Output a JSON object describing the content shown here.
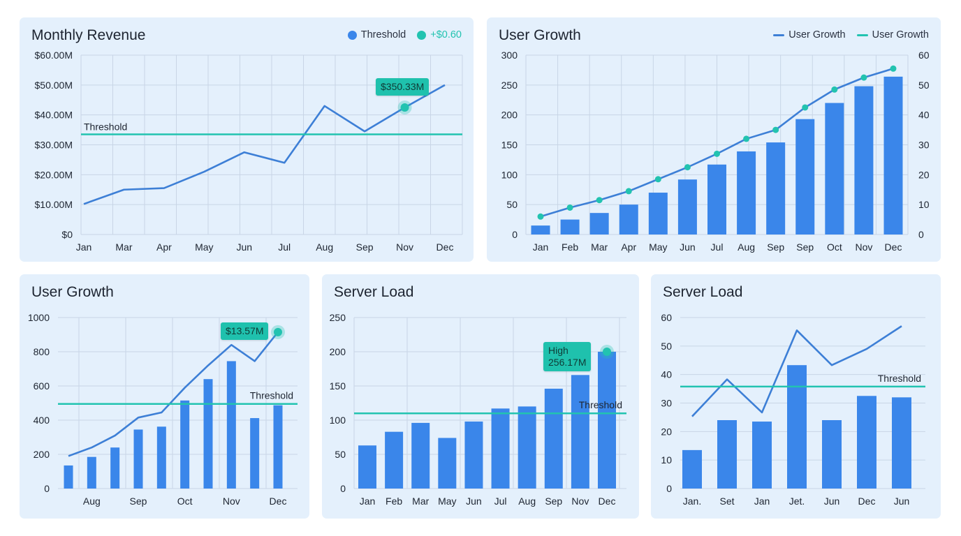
{
  "colors": {
    "panel": "#e4f0fc",
    "bar": "#3a86ea",
    "line": "#3d7fd6",
    "accent": "#22c3b0",
    "grid": "#c8d5e6",
    "text": "#1d2430"
  },
  "chart_data": [
    {
      "type": "line",
      "title": "Monthly Revenue",
      "legend": [
        {
          "label": "Threshold",
          "color": "#3a86ea",
          "marker": "dot"
        },
        {
          "label": "+$0.60",
          "color": "#22c3b0",
          "marker": "dot"
        }
      ],
      "legend_position": "top-right",
      "categories": [
        "Jan",
        "Mar",
        "Apr",
        "May",
        "Jun",
        "Jul",
        "Aug",
        "Sep",
        "Nov",
        "Dec"
      ],
      "series": [
        {
          "type": "line",
          "values": [
            10.2,
            15,
            15.5,
            21,
            27.5,
            24,
            43,
            34.5,
            42.5,
            50
          ]
        }
      ],
      "ylim": [
        0,
        60
      ],
      "yticks": [
        0,
        10,
        20,
        30,
        40,
        50,
        60
      ],
      "ytick_labels": [
        "$0",
        "$10.00M",
        "$20.00M",
        "$30.00M",
        "$40.00M",
        "$50.00M",
        "$60.00M"
      ],
      "threshold": {
        "value": 33.5,
        "label": "Threshold"
      },
      "annotation": {
        "category": "Nov",
        "value": 42.5,
        "lines": [
          "$350.33M"
        ]
      },
      "grid": true
    },
    {
      "type": "bar",
      "title": "User Growth",
      "legend": [
        {
          "label": "User Growth",
          "color": "#3d7fd6",
          "marker": "line"
        },
        {
          "label": "User Growth",
          "color": "#22c3b0",
          "marker": "line"
        }
      ],
      "legend_position": "top-right",
      "categories": [
        "Jan",
        "Feb",
        "Mar",
        "Apr",
        "May",
        "Jun",
        "Jul",
        "Aug",
        "Sep",
        "Sep",
        "Oct",
        "Nov",
        "Dec"
      ],
      "series": [
        {
          "type": "bar",
          "axis": "left",
          "values": [
            15,
            25,
            36,
            50,
            70,
            92,
            117,
            139,
            154,
            193,
            220,
            248,
            264
          ]
        },
        {
          "type": "line",
          "axis": "right",
          "markers": true,
          "values": [
            6,
            9,
            11.5,
            14.5,
            18.5,
            22.5,
            27,
            32,
            35,
            42.5,
            48.5,
            52.5,
            55.5
          ]
        }
      ],
      "ylim": [
        0,
        300
      ],
      "yticks": [
        0,
        50,
        100,
        150,
        200,
        250,
        300
      ],
      "ytick_labels": [
        "0",
        "50",
        "100",
        "150",
        "200",
        "250",
        "300"
      ],
      "y2lim": [
        0,
        60
      ],
      "y2ticks": [
        0,
        10,
        20,
        30,
        40,
        50,
        60
      ],
      "y2tick_labels": [
        "0",
        "10",
        "20",
        "30",
        "40",
        "50",
        "60"
      ],
      "grid": true
    },
    {
      "type": "bar",
      "title": "User Growth",
      "categories": [
        "",
        "Aug",
        "",
        "Sep",
        "",
        "Oct",
        "",
        "Nov",
        "",
        "Dec"
      ],
      "series": [
        {
          "type": "bar",
          "values": [
            135,
            185,
            240,
            345,
            362,
            515,
            640,
            745,
            412,
            487
          ]
        },
        {
          "type": "line",
          "values": [
            190,
            240,
            310,
            415,
            445,
            590,
            720,
            840,
            745,
            915
          ]
        }
      ],
      "ylim": [
        0,
        1000
      ],
      "yticks": [
        0,
        200,
        400,
        600,
        800,
        1000
      ],
      "ytick_labels": [
        "0",
        "200",
        "400",
        "600",
        "800",
        "1000"
      ],
      "threshold": {
        "value": 495,
        "label": "Threshold"
      },
      "annotation": {
        "category_index": 9,
        "value": 915,
        "lines": [
          "$13.57M"
        ]
      },
      "grid": true
    },
    {
      "type": "bar",
      "title": "Server Load",
      "categories": [
        "Jan",
        "Feb",
        "Mar",
        "May",
        "Jun",
        "Jul",
        "Aug",
        "Sep",
        "Nov",
        "Dec"
      ],
      "series": [
        {
          "type": "bar",
          "values": [
            63,
            83,
            96,
            74,
            98,
            117,
            120,
            146,
            166,
            200
          ]
        }
      ],
      "ylim": [
        0,
        250
      ],
      "yticks": [
        0,
        50,
        100,
        150,
        200,
        250
      ],
      "ytick_labels": [
        "0",
        "50",
        "100",
        "150",
        "200",
        "250"
      ],
      "threshold": {
        "value": 110,
        "label": "Threshold"
      },
      "annotation": {
        "category": "Dec",
        "value": 200,
        "lines": [
          "High",
          "256.17M"
        ]
      },
      "grid": true
    },
    {
      "type": "bar",
      "title": "Server Load",
      "categories": [
        "Jan.",
        "Set",
        "Jan",
        "Jet.",
        "Jun",
        "Dec",
        "Jun"
      ],
      "series": [
        {
          "type": "bar",
          "values": [
            13.5,
            24,
            23.5,
            43.3,
            24,
            32.5,
            32
          ]
        },
        {
          "type": "line",
          "values": [
            25.3,
            38.3,
            26.7,
            55.5,
            43.3,
            49,
            57
          ]
        }
      ],
      "ylim": [
        0,
        60
      ],
      "yticks": [
        0,
        10,
        20,
        30,
        40,
        50,
        60
      ],
      "ytick_labels": [
        "0",
        "10",
        "20",
        "30",
        "40",
        "50",
        "60"
      ],
      "threshold": {
        "value": 35.8,
        "label": "Threshold"
      },
      "grid": true
    }
  ]
}
